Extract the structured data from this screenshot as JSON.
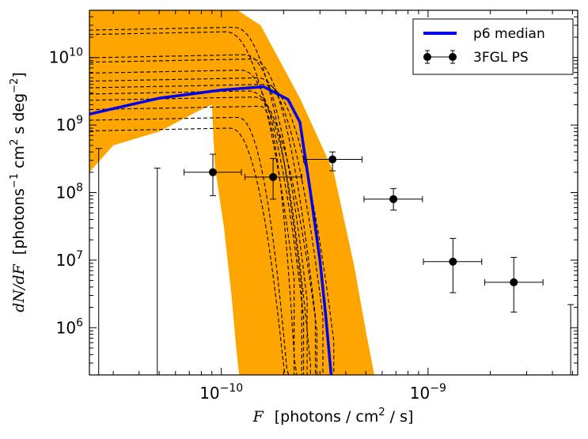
{
  "chart_data": {
    "type": "line",
    "title": "",
    "xlabel_parts": {
      "var": "F",
      "text": "[photons / cm",
      "sup": "2",
      "tail": " / s]"
    },
    "ylabel_parts": {
      "var": "dN/dF",
      "text1": "[photons",
      "sup1": "−1",
      "text2": "cm",
      "sup2": "2",
      "text3": " s deg",
      "sup3": "−2",
      "text4": "]"
    },
    "x_scale": "log",
    "y_scale": "log",
    "xlim": [
      2.3e-11,
      5.3e-09
    ],
    "ylim": [
      200000.0,
      50000000000.0
    ],
    "x_ticks": [
      {
        "value": 1e-10,
        "base": "10",
        "exp": "-10"
      },
      {
        "value": 1e-09,
        "base": "10",
        "exp": "-9"
      }
    ],
    "y_ticks": [
      {
        "value": 1000000.0,
        "base": "10",
        "exp": "6"
      },
      {
        "value": 10000000.0,
        "base": "10",
        "exp": "7"
      },
      {
        "value": 100000000.0,
        "base": "10",
        "exp": "8"
      },
      {
        "value": 1000000000.0,
        "base": "10",
        "exp": "9"
      },
      {
        "value": 10000000000.0,
        "base": "10",
        "exp": "10"
      }
    ],
    "legend_position": "top-right",
    "colors": {
      "band": "#FFA500",
      "median": "#0000EE",
      "dashed": "#000000",
      "points": "#000000"
    },
    "band": {
      "name": "posterior band",
      "upper": [
        [
          2.3e-11,
          50000000000.0
        ],
        [
          1.2e-10,
          50000000000.0
        ],
        [
          1.55e-10,
          30000000000.0
        ],
        [
          2.4e-10,
          2500000000.0
        ],
        [
          3.5e-10,
          200000000.0
        ],
        [
          4.4e-10,
          8000000.0
        ],
        [
          5e-10,
          900000.0
        ],
        [
          5.5e-10,
          200000.0
        ]
      ],
      "lower": [
        [
          2.3e-11,
          200000000.0
        ],
        [
          3e-11,
          500000000.0
        ],
        [
          5e-11,
          800000000.0
        ],
        [
          8e-11,
          1700000000.0
        ],
        [
          9e-11,
          2000000000.0
        ],
        [
          9.3e-11,
          250000000.0
        ],
        [
          1.03e-10,
          30000000.0
        ],
        [
          1.12e-10,
          3000000.0
        ],
        [
          1.18e-10,
          500000.0
        ],
        [
          1.22e-10,
          200000.0
        ]
      ]
    },
    "median": {
      "name": "p6 median",
      "points": [
        [
          2.3e-11,
          1450000000.0
        ],
        [
          5e-11,
          2500000000.0
        ],
        [
          1e-10,
          3300000000.0
        ],
        [
          1.6e-10,
          3700000000.0
        ],
        [
          2.1e-10,
          2400000000.0
        ],
        [
          2.4e-10,
          1100000000.0
        ],
        [
          2.7e-10,
          100000000.0
        ],
        [
          3e-10,
          10000000.0
        ],
        [
          3.2e-10,
          1500000.0
        ],
        [
          3.4e-10,
          200000.0
        ]
      ]
    },
    "dashed_lines": [
      {
        "norm": 24000000000.0,
        "flat_to": 1.05e-10,
        "lo_curve": 2.15e-10,
        "end_x": 2.25e-10
      },
      {
        "norm": 28000000000.0,
        "flat_to": 1.15e-10,
        "lo_curve": 2.3e-10,
        "end_x": 2.45e-10
      },
      {
        "norm": 11000000000.0,
        "flat_to": 1.3e-10,
        "lo_curve": 2.5e-10,
        "end_x": 2.6e-10
      },
      {
        "norm": 9500000000.0,
        "flat_to": 1.4e-10,
        "lo_curve": 2.7e-10,
        "end_x": 2.85e-10
      },
      {
        "norm": 6500000000.0,
        "flat_to": 1.25e-10,
        "lo_curve": 2.4e-10,
        "end_x": 2.5e-10
      },
      {
        "norm": 5000000000.0,
        "flat_to": 1.5e-10,
        "lo_curve": 3e-10,
        "end_x": 3.1e-10
      },
      {
        "norm": 4000000000.0,
        "flat_to": 1.6e-10,
        "lo_curve": 3.3e-10,
        "end_x": 3.5e-10
      },
      {
        "norm": 3200000000.0,
        "flat_to": 1.35e-10,
        "lo_curve": 2.8e-10,
        "end_x": 2.9e-10
      },
      {
        "norm": 2600000000.0,
        "flat_to": 1.45e-10,
        "lo_curve": 2.55e-10,
        "end_x": 2.7e-10
      },
      {
        "norm": 1900000000.0,
        "flat_to": 1.55e-10,
        "lo_curve": 2.2e-10,
        "end_x": 2.35e-10
      },
      {
        "norm": 1300000000.0,
        "flat_to": 1.2e-10,
        "lo_curve": 2e-10,
        "end_x": 2.15e-10
      },
      {
        "norm": 900000000.0,
        "flat_to": 1.1e-10,
        "lo_curve": 1.95e-10,
        "end_x": 2.05e-10
      }
    ],
    "points_series": {
      "name": "3FGL PS",
      "points": [
        {
          "x": 9.1e-11,
          "y": 200000000.0,
          "xerr_lo": 6.6e-11,
          "xerr_hi": 1.25e-10,
          "yerr_lo": 90000000.0,
          "yerr_hi": 370000000.0
        },
        {
          "x": 1.78e-10,
          "y": 170000000.0,
          "xerr_lo": 1.3e-10,
          "xerr_hi": 2.45e-10,
          "yerr_lo": 80000000.0,
          "yerr_hi": 320000000.0
        },
        {
          "x": 3.45e-10,
          "y": 310000000.0,
          "xerr_lo": 2.5e-10,
          "xerr_hi": 4.8e-10,
          "yerr_lo": 210000000.0,
          "yerr_hi": 400000000.0
        },
        {
          "x": 6.8e-10,
          "y": 80000000.0,
          "xerr_lo": 4.9e-10,
          "xerr_hi": 9.4e-10,
          "yerr_lo": 55000000.0,
          "yerr_hi": 115000000.0
        },
        {
          "x": 1.32e-09,
          "y": 9500000.0,
          "xerr_lo": 9.5e-10,
          "xerr_hi": 1.82e-09,
          "yerr_lo": 3300000.0,
          "yerr_hi": 21000000.0
        },
        {
          "x": 2.6e-09,
          "y": 4700000.0,
          "xerr_lo": 1.88e-09,
          "xerr_hi": 3.6e-09,
          "yerr_lo": 1700000.0,
          "yerr_hi": 11000000.0
        }
      ],
      "upper_limits": [
        {
          "x": 2.55e-11,
          "y_top": 450000000.0
        },
        {
          "x": 4.9e-11,
          "y_top": 230000000.0
        },
        {
          "x": 4.9e-09,
          "y_top": 2200000.0
        }
      ]
    },
    "legend": [
      {
        "label": "p6 median",
        "kind": "line"
      },
      {
        "label": "3FGL PS",
        "kind": "errorbar"
      }
    ]
  }
}
